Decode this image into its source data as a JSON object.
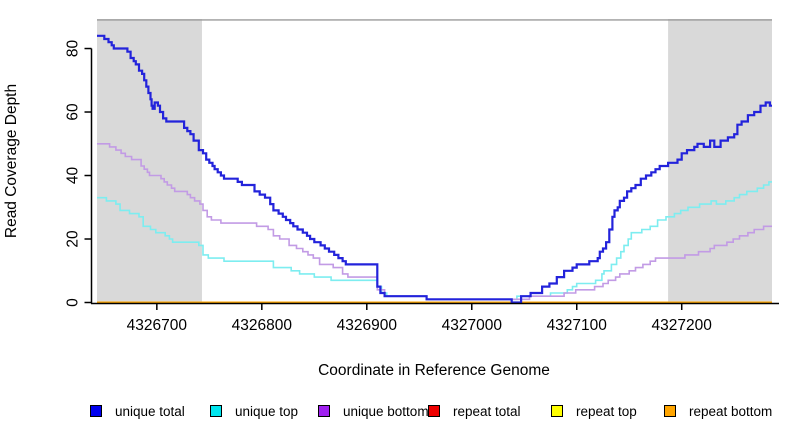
{
  "chart_data": {
    "type": "line",
    "subtype": "step",
    "title": "",
    "xlabel": "Coordinate in Reference Genome",
    "ylabel": "Read Coverage Depth",
    "x_ticks": [
      4326700,
      4326800,
      4326900,
      4327000,
      4327100,
      4327200
    ],
    "y_ticks": [
      0,
      20,
      40,
      60,
      80
    ],
    "xlim": [
      4326643,
      4327286
    ],
    "ylim": [
      0,
      89.3
    ],
    "grid": "off",
    "legend_position": "bottom",
    "axis_color": "#000000",
    "shade_color": "#d9d9d9",
    "ceiling_line": {
      "y": 89.0,
      "color": "#9a9a9a"
    },
    "shaded_regions": [
      {
        "x0": 4326643,
        "x1": 4326743
      },
      {
        "x0": 4327187,
        "x1": 4327286
      }
    ],
    "legend": [
      {
        "label": "unique total",
        "color": "#0000ee"
      },
      {
        "label": "unique top",
        "color": "#00e5ee"
      },
      {
        "label": "unique bottom",
        "color": "#a020f0"
      },
      {
        "label": "repeat total",
        "color": "#ee0000"
      },
      {
        "label": "repeat top",
        "color": "#ffff00"
      },
      {
        "label": "repeat bottom",
        "color": "#ffa500"
      }
    ],
    "series": [
      {
        "name": "repeat total",
        "color": "#ee0000",
        "width": 1.6,
        "points": [
          [
            4326643,
            0
          ],
          [
            4327286,
            0
          ]
        ]
      },
      {
        "name": "repeat top",
        "color": "#ffff00",
        "width": 1.6,
        "points": [
          [
            4326643,
            0
          ],
          [
            4327286,
            0
          ]
        ]
      },
      {
        "name": "repeat bottom",
        "color": "#ffa500",
        "width": 2,
        "points": [
          [
            4326643,
            0
          ],
          [
            4327286,
            0
          ]
        ]
      },
      {
        "name": "unique top",
        "color": "#7dedf0",
        "width": 1.6,
        "points": [
          [
            4326643,
            33
          ],
          [
            4326652,
            32
          ],
          [
            4326661,
            31
          ],
          [
            4326665,
            29
          ],
          [
            4326674,
            28
          ],
          [
            4326683,
            27
          ],
          [
            4326687,
            24
          ],
          [
            4326694,
            23
          ],
          [
            4326699,
            22
          ],
          [
            4326708,
            21
          ],
          [
            4326712,
            20
          ],
          [
            4326715,
            19
          ],
          [
            4326740,
            18
          ],
          [
            4326744,
            15
          ],
          [
            4326749,
            14
          ],
          [
            4326764,
            13
          ],
          [
            4326811,
            11
          ],
          [
            4326828,
            10
          ],
          [
            4326836,
            9
          ],
          [
            4326850,
            8
          ],
          [
            4326866,
            7
          ],
          [
            4326910,
            5
          ],
          [
            4326914,
            3
          ],
          [
            4326919,
            2
          ],
          [
            4326957,
            1
          ],
          [
            4327043,
            2
          ],
          [
            4327075,
            3
          ],
          [
            4327091,
            4
          ],
          [
            4327096,
            5
          ],
          [
            4327100,
            6
          ],
          [
            4327118,
            7
          ],
          [
            4327124,
            9
          ],
          [
            4327126,
            10
          ],
          [
            4327133,
            12
          ],
          [
            4327138,
            14
          ],
          [
            4327142,
            16
          ],
          [
            4327145,
            18
          ],
          [
            4327149,
            20
          ],
          [
            4327152,
            22
          ],
          [
            4327162,
            23
          ],
          [
            4327170,
            24
          ],
          [
            4327177,
            26
          ],
          [
            4327185,
            27
          ],
          [
            4327193,
            28
          ],
          [
            4327199,
            29
          ],
          [
            4327206,
            30
          ],
          [
            4327217,
            31
          ],
          [
            4327228,
            32
          ],
          [
            4327233,
            31
          ],
          [
            4327242,
            32
          ],
          [
            4327250,
            33
          ],
          [
            4327255,
            34
          ],
          [
            4327262,
            35
          ],
          [
            4327272,
            36
          ],
          [
            4327278,
            37
          ],
          [
            4327283,
            38
          ]
        ]
      },
      {
        "name": "unique bottom",
        "color": "#c29be5",
        "width": 1.6,
        "points": [
          [
            4326643,
            50
          ],
          [
            4326655,
            49
          ],
          [
            4326661,
            48
          ],
          [
            4326666,
            47
          ],
          [
            4326670,
            46
          ],
          [
            4326676,
            45
          ],
          [
            4326685,
            43
          ],
          [
            4326688,
            42
          ],
          [
            4326691,
            41
          ],
          [
            4326693,
            40
          ],
          [
            4326704,
            39
          ],
          [
            4326707,
            38
          ],
          [
            4326710,
            37
          ],
          [
            4326714,
            36
          ],
          [
            4326717,
            35
          ],
          [
            4326729,
            34
          ],
          [
            4326732,
            33
          ],
          [
            4326736,
            32
          ],
          [
            4326741,
            31
          ],
          [
            4326744,
            29
          ],
          [
            4326748,
            27
          ],
          [
            4326752,
            26
          ],
          [
            4326761,
            25
          ],
          [
            4326795,
            24
          ],
          [
            4326806,
            23
          ],
          [
            4326811,
            21
          ],
          [
            4326817,
            20
          ],
          [
            4326826,
            18
          ],
          [
            4326833,
            17
          ],
          [
            4326839,
            16
          ],
          [
            4326844,
            15
          ],
          [
            4326849,
            14
          ],
          [
            4326855,
            12
          ],
          [
            4326868,
            11
          ],
          [
            4326877,
            9
          ],
          [
            4326882,
            8
          ],
          [
            4326910,
            4
          ],
          [
            4326917,
            2
          ],
          [
            4326957,
            1
          ],
          [
            4327055,
            2
          ],
          [
            4327088,
            3
          ],
          [
            4327099,
            4
          ],
          [
            4327117,
            5
          ],
          [
            4327125,
            6
          ],
          [
            4327130,
            7
          ],
          [
            4327137,
            8
          ],
          [
            4327141,
            9
          ],
          [
            4327150,
            10
          ],
          [
            4327156,
            11
          ],
          [
            4327163,
            12
          ],
          [
            4327170,
            13
          ],
          [
            4327175,
            14
          ],
          [
            4327203,
            15
          ],
          [
            4327216,
            16
          ],
          [
            4327227,
            17
          ],
          [
            4327231,
            18
          ],
          [
            4327243,
            19
          ],
          [
            4327249,
            20
          ],
          [
            4327255,
            21
          ],
          [
            4327263,
            22
          ],
          [
            4327269,
            23
          ],
          [
            4327278,
            24
          ]
        ]
      },
      {
        "name": "unique total",
        "color": "#2323db",
        "width": 2.2,
        "points": [
          [
            4326643,
            84
          ],
          [
            4326650,
            83
          ],
          [
            4326654,
            82
          ],
          [
            4326657,
            81
          ],
          [
            4326659,
            80
          ],
          [
            4326672,
            79
          ],
          [
            4326675,
            77
          ],
          [
            4326678,
            76
          ],
          [
            4326680,
            75
          ],
          [
            4326683,
            73
          ],
          [
            4326686,
            72
          ],
          [
            4326688,
            70
          ],
          [
            4326690,
            68
          ],
          [
            4326692,
            66
          ],
          [
            4326694,
            64
          ],
          [
            4326695,
            62
          ],
          [
            4326696,
            61
          ],
          [
            4326698,
            63
          ],
          [
            4326701,
            62
          ],
          [
            4326703,
            60
          ],
          [
            4326706,
            58
          ],
          [
            4326709,
            57
          ],
          [
            4326726,
            55
          ],
          [
            4326729,
            54
          ],
          [
            4326732,
            53
          ],
          [
            4326735,
            51
          ],
          [
            4326740,
            48
          ],
          [
            4326744,
            47
          ],
          [
            4326747,
            45
          ],
          [
            4326750,
            44
          ],
          [
            4326753,
            43
          ],
          [
            4326755,
            42
          ],
          [
            4326758,
            41
          ],
          [
            4326761,
            40
          ],
          [
            4326764,
            39
          ],
          [
            4326777,
            38
          ],
          [
            4326781,
            37
          ],
          [
            4326793,
            35
          ],
          [
            4326798,
            34
          ],
          [
            4326803,
            33
          ],
          [
            4326808,
            31
          ],
          [
            4326811,
            29
          ],
          [
            4326816,
            28
          ],
          [
            4326820,
            27
          ],
          [
            4326823,
            26
          ],
          [
            4326827,
            25
          ],
          [
            4326830,
            24
          ],
          [
            4326834,
            23
          ],
          [
            4326839,
            22
          ],
          [
            4326843,
            21
          ],
          [
            4326846,
            20
          ],
          [
            4326850,
            19
          ],
          [
            4326856,
            18
          ],
          [
            4326860,
            17
          ],
          [
            4326864,
            16
          ],
          [
            4326869,
            15
          ],
          [
            4326873,
            14
          ],
          [
            4326877,
            13
          ],
          [
            4326880,
            12
          ],
          [
            4326910,
            5
          ],
          [
            4326913,
            3
          ],
          [
            4326917,
            2
          ],
          [
            4326957,
            1
          ],
          [
            4327038,
            0
          ],
          [
            4327047,
            2
          ],
          [
            4327056,
            3
          ],
          [
            4327067,
            5
          ],
          [
            4327074,
            6
          ],
          [
            4327081,
            8
          ],
          [
            4327088,
            10
          ],
          [
            4327096,
            11
          ],
          [
            4327100,
            12
          ],
          [
            4327112,
            13
          ],
          [
            4327120,
            14
          ],
          [
            4327122,
            16
          ],
          [
            4327125,
            17
          ],
          [
            4327128,
            19
          ],
          [
            4327131,
            23
          ],
          [
            4327134,
            27
          ],
          [
            4327136,
            29
          ],
          [
            4327139,
            30
          ],
          [
            4327141,
            32
          ],
          [
            4327145,
            33
          ],
          [
            4327148,
            35
          ],
          [
            4327152,
            36
          ],
          [
            4327156,
            37
          ],
          [
            4327161,
            39
          ],
          [
            4327166,
            40
          ],
          [
            4327171,
            41
          ],
          [
            4327175,
            42
          ],
          [
            4327179,
            43
          ],
          [
            4327187,
            44
          ],
          [
            4327196,
            45
          ],
          [
            4327200,
            47
          ],
          [
            4327205,
            48
          ],
          [
            4327212,
            49
          ],
          [
            4327215,
            50
          ],
          [
            4327221,
            49
          ],
          [
            4327227,
            51
          ],
          [
            4327231,
            49
          ],
          [
            4327237,
            51
          ],
          [
            4327244,
            52
          ],
          [
            4327250,
            53
          ],
          [
            4327253,
            56
          ],
          [
            4327257,
            57
          ],
          [
            4327263,
            59
          ],
          [
            4327269,
            60
          ],
          [
            4327275,
            62
          ],
          [
            4327280,
            63
          ],
          [
            4327284,
            62
          ]
        ]
      }
    ]
  }
}
